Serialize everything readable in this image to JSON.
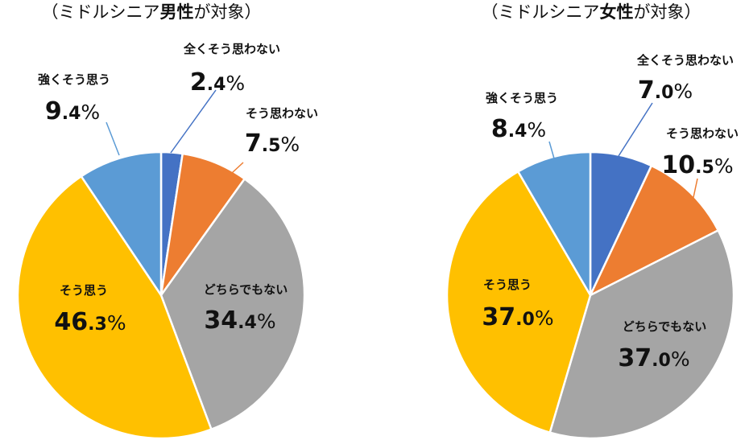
{
  "chart_data": [
    {
      "type": "pie",
      "title": "（ミドルシニア男性が対象）",
      "title_parts": [
        "（ミドルシニア",
        "男性",
        "が対象）"
      ],
      "slices": [
        {
          "label": "全くそう思わない",
          "value": 2.4,
          "display": "2.4%",
          "color": "#4472C4"
        },
        {
          "label": "そう思わない",
          "value": 7.5,
          "display": "7.5%",
          "color": "#ED7D31"
        },
        {
          "label": "どちらでもない",
          "value": 34.4,
          "display": "34.4%",
          "color": "#A5A5A5"
        },
        {
          "label": "そう思う",
          "value": 46.3,
          "display": "46.3%",
          "color": "#FFC000"
        },
        {
          "label": "強くそう思う",
          "value": 9.4,
          "display": "9.4%",
          "color": "#5B9BD5"
        }
      ]
    },
    {
      "type": "pie",
      "title": "（ミドルシニア女性が対象）",
      "title_parts": [
        "（ミドルシニア",
        "女性",
        "が対象）"
      ],
      "slices": [
        {
          "label": "全くそう思わない",
          "value": 7.0,
          "display": "7.0%",
          "color": "#4472C4"
        },
        {
          "label": "そう思わない",
          "value": 10.5,
          "display": "10.5%",
          "color": "#ED7D31"
        },
        {
          "label": "どちらでもない",
          "value": 37.0,
          "display": "37.0%",
          "color": "#A5A5A5"
        },
        {
          "label": "そう思う",
          "value": 37.0,
          "display": "37.0%",
          "color": "#FFC000"
        },
        {
          "label": "強くそう思う",
          "value": 8.4,
          "display": "8.4%",
          "color": "#5B9BD5"
        }
      ]
    }
  ]
}
